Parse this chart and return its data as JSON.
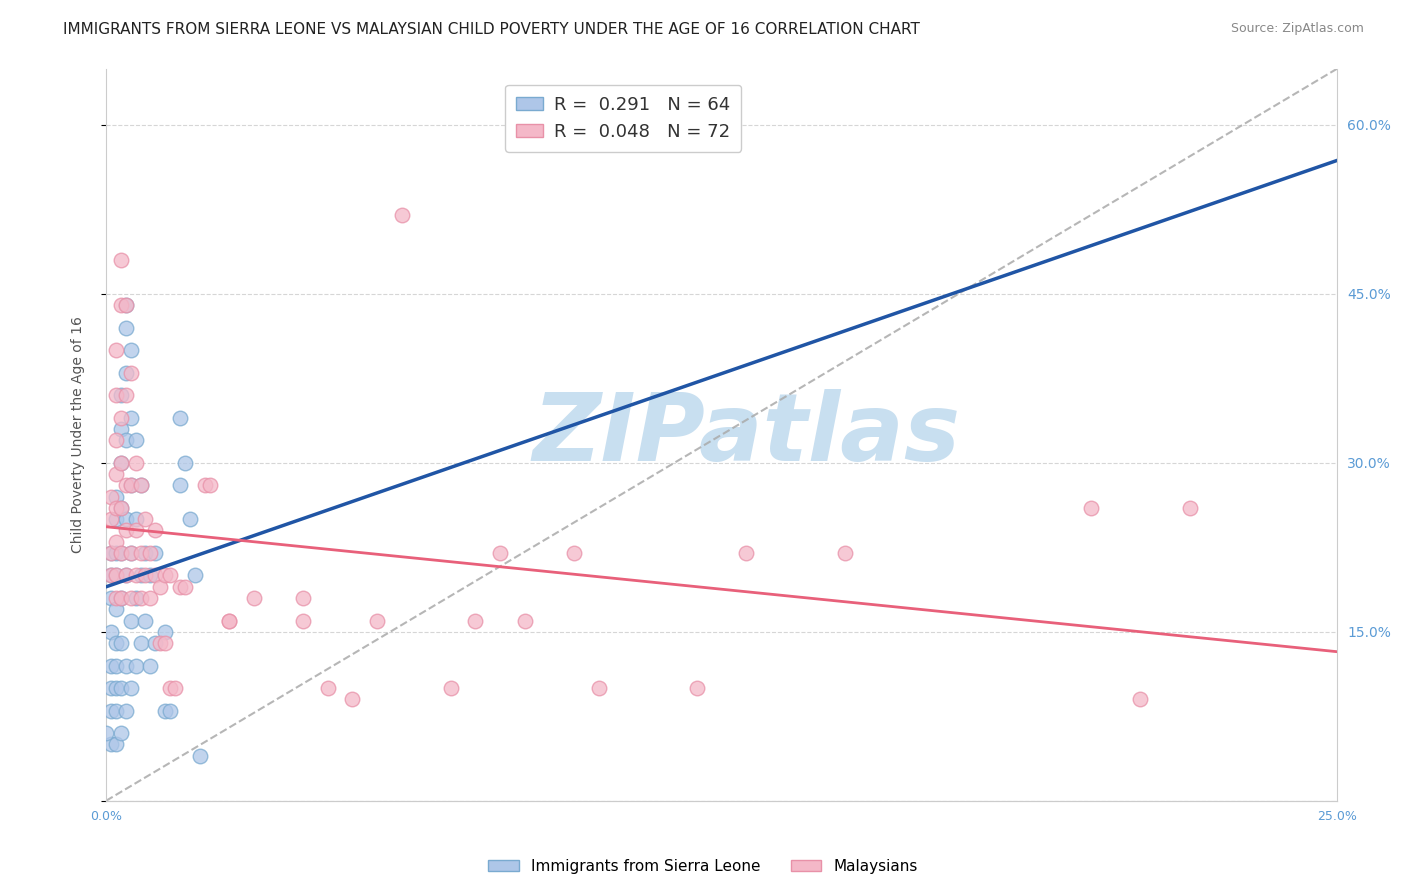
{
  "title": "IMMIGRANTS FROM SIERRA LEONE VS MALAYSIAN CHILD POVERTY UNDER THE AGE OF 16 CORRELATION CHART",
  "source": "Source: ZipAtlas.com",
  "ylabel": "Child Poverty Under the Age of 16",
  "xlim": [
    0,
    0.25
  ],
  "ylim": [
    0,
    0.65
  ],
  "xticks": [
    0.0,
    0.05,
    0.1,
    0.15,
    0.2,
    0.25
  ],
  "xticklabels": [
    "0.0%",
    "",
    "",
    "",
    "",
    "25.0%"
  ],
  "yticks_left": [
    0.0,
    0.15,
    0.3,
    0.45,
    0.6
  ],
  "yticklabels_left": [
    "",
    "",
    "",
    "",
    ""
  ],
  "yticks_right": [
    0.0,
    0.15,
    0.3,
    0.45,
    0.6
  ],
  "yticklabels_right": [
    "",
    "15.0%",
    "30.0%",
    "45.0%",
    "60.0%"
  ],
  "legend_line1": "R =  0.291   N = 64",
  "legend_line2": "R =  0.048   N = 72",
  "legend_color1": "#aec6e8",
  "legend_color2": "#f4b8c8",
  "scatter_blue": [
    [
      0.001,
      0.05
    ],
    [
      0.001,
      0.08
    ],
    [
      0.001,
      0.1
    ],
    [
      0.001,
      0.12
    ],
    [
      0.001,
      0.15
    ],
    [
      0.001,
      0.18
    ],
    [
      0.001,
      0.2
    ],
    [
      0.001,
      0.22
    ],
    [
      0.002,
      0.05
    ],
    [
      0.002,
      0.08
    ],
    [
      0.002,
      0.1
    ],
    [
      0.002,
      0.12
    ],
    [
      0.002,
      0.14
    ],
    [
      0.002,
      0.17
    ],
    [
      0.002,
      0.2
    ],
    [
      0.002,
      0.22
    ],
    [
      0.002,
      0.25
    ],
    [
      0.002,
      0.27
    ],
    [
      0.003,
      0.06
    ],
    [
      0.003,
      0.1
    ],
    [
      0.003,
      0.14
    ],
    [
      0.003,
      0.18
    ],
    [
      0.003,
      0.22
    ],
    [
      0.003,
      0.26
    ],
    [
      0.003,
      0.3
    ],
    [
      0.003,
      0.33
    ],
    [
      0.003,
      0.36
    ],
    [
      0.004,
      0.08
    ],
    [
      0.004,
      0.12
    ],
    [
      0.004,
      0.2
    ],
    [
      0.004,
      0.25
    ],
    [
      0.004,
      0.32
    ],
    [
      0.004,
      0.38
    ],
    [
      0.004,
      0.42
    ],
    [
      0.004,
      0.44
    ],
    [
      0.005,
      0.1
    ],
    [
      0.005,
      0.16
    ],
    [
      0.005,
      0.22
    ],
    [
      0.005,
      0.28
    ],
    [
      0.005,
      0.34
    ],
    [
      0.005,
      0.4
    ],
    [
      0.006,
      0.12
    ],
    [
      0.006,
      0.18
    ],
    [
      0.006,
      0.25
    ],
    [
      0.006,
      0.32
    ],
    [
      0.007,
      0.14
    ],
    [
      0.007,
      0.2
    ],
    [
      0.007,
      0.28
    ],
    [
      0.008,
      0.16
    ],
    [
      0.008,
      0.22
    ],
    [
      0.009,
      0.12
    ],
    [
      0.009,
      0.2
    ],
    [
      0.01,
      0.14
    ],
    [
      0.01,
      0.22
    ],
    [
      0.012,
      0.08
    ],
    [
      0.012,
      0.15
    ],
    [
      0.013,
      0.08
    ],
    [
      0.015,
      0.28
    ],
    [
      0.015,
      0.34
    ],
    [
      0.016,
      0.3
    ],
    [
      0.017,
      0.25
    ],
    [
      0.018,
      0.2
    ],
    [
      0.0,
      0.06
    ],
    [
      0.019,
      0.04
    ]
  ],
  "scatter_pink": [
    [
      0.001,
      0.2
    ],
    [
      0.001,
      0.22
    ],
    [
      0.001,
      0.25
    ],
    [
      0.001,
      0.27
    ],
    [
      0.002,
      0.18
    ],
    [
      0.002,
      0.2
    ],
    [
      0.002,
      0.23
    ],
    [
      0.002,
      0.26
    ],
    [
      0.002,
      0.29
    ],
    [
      0.002,
      0.32
    ],
    [
      0.002,
      0.36
    ],
    [
      0.002,
      0.4
    ],
    [
      0.003,
      0.18
    ],
    [
      0.003,
      0.22
    ],
    [
      0.003,
      0.26
    ],
    [
      0.003,
      0.3
    ],
    [
      0.003,
      0.34
    ],
    [
      0.003,
      0.44
    ],
    [
      0.003,
      0.48
    ],
    [
      0.004,
      0.2
    ],
    [
      0.004,
      0.24
    ],
    [
      0.004,
      0.28
    ],
    [
      0.004,
      0.36
    ],
    [
      0.004,
      0.44
    ],
    [
      0.005,
      0.18
    ],
    [
      0.005,
      0.22
    ],
    [
      0.005,
      0.28
    ],
    [
      0.005,
      0.38
    ],
    [
      0.006,
      0.2
    ],
    [
      0.006,
      0.24
    ],
    [
      0.006,
      0.3
    ],
    [
      0.007,
      0.18
    ],
    [
      0.007,
      0.22
    ],
    [
      0.007,
      0.28
    ],
    [
      0.008,
      0.2
    ],
    [
      0.008,
      0.25
    ],
    [
      0.009,
      0.18
    ],
    [
      0.009,
      0.22
    ],
    [
      0.01,
      0.2
    ],
    [
      0.01,
      0.24
    ],
    [
      0.011,
      0.14
    ],
    [
      0.011,
      0.19
    ],
    [
      0.012,
      0.14
    ],
    [
      0.012,
      0.2
    ],
    [
      0.013,
      0.1
    ],
    [
      0.013,
      0.2
    ],
    [
      0.014,
      0.1
    ],
    [
      0.015,
      0.19
    ],
    [
      0.016,
      0.19
    ],
    [
      0.02,
      0.28
    ],
    [
      0.021,
      0.28
    ],
    [
      0.025,
      0.16
    ],
    [
      0.025,
      0.16
    ],
    [
      0.03,
      0.18
    ],
    [
      0.04,
      0.16
    ],
    [
      0.04,
      0.18
    ],
    [
      0.045,
      0.1
    ],
    [
      0.05,
      0.09
    ],
    [
      0.055,
      0.16
    ],
    [
      0.06,
      0.52
    ],
    [
      0.07,
      0.1
    ],
    [
      0.075,
      0.16
    ],
    [
      0.08,
      0.22
    ],
    [
      0.085,
      0.16
    ],
    [
      0.095,
      0.22
    ],
    [
      0.1,
      0.1
    ],
    [
      0.12,
      0.1
    ],
    [
      0.13,
      0.22
    ],
    [
      0.15,
      0.22
    ],
    [
      0.2,
      0.26
    ],
    [
      0.21,
      0.09
    ],
    [
      0.22,
      0.26
    ]
  ],
  "watermark_text": "ZIPatlas",
  "watermark_color": "#c8dff0",
  "watermark_fontsize": 68,
  "background_color": "#ffffff",
  "grid_color": "#cccccc",
  "title_fontsize": 11,
  "blue_scatter_color": "#aec6e8",
  "blue_scatter_edge": "#7aaad0",
  "pink_scatter_color": "#f4b8c8",
  "pink_scatter_edge": "#e891a8",
  "blue_line_color": "#2055a5",
  "pink_line_color": "#e8607a",
  "diag_line_color": "#aaaaaa",
  "bottom_legend_labels": [
    "Immigrants from Sierra Leone",
    "Malaysians"
  ],
  "bottom_legend_colors": [
    "#aec6e8",
    "#f4b8c8"
  ],
  "bottom_legend_edge_colors": [
    "#7aaad0",
    "#e891a8"
  ]
}
